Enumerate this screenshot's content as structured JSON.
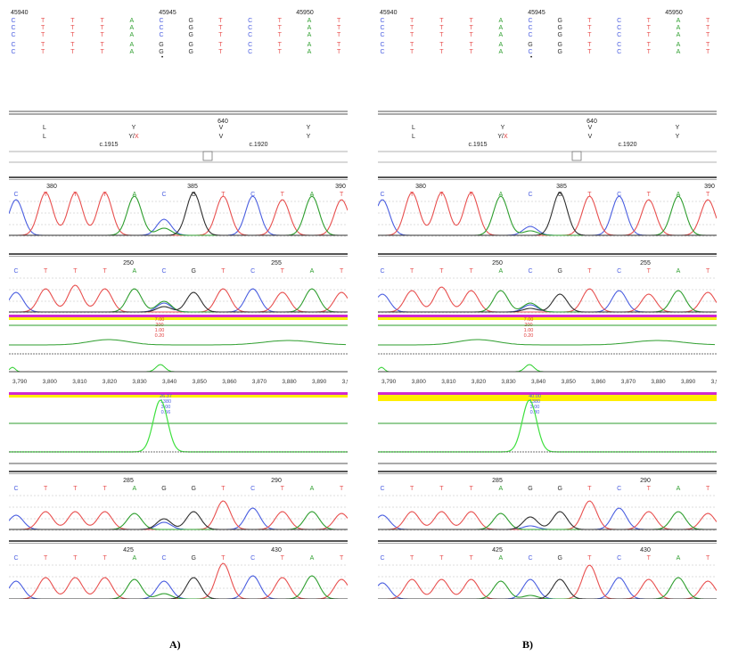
{
  "colors": {
    "A": "#2e9e2e",
    "C": "#4a5ee0",
    "G": "#303030",
    "T": "#e8504f",
    "N": "#e8504f",
    "label_red": "#e03a3a",
    "label_blue": "#4a5ee0",
    "highlight_yellow": "#ffee00",
    "highlight_magenta": "#d02ad0"
  },
  "panels": [
    {
      "id": "a",
      "caption": "A)",
      "ref_seq": {
        "pos_labels": [
          "45940",
          "45945",
          "45950"
        ],
        "rows": [
          [
            "C",
            "T",
            "T",
            "T",
            "A",
            "C",
            "G",
            "T",
            "C",
            "T",
            "A",
            "T"
          ],
          [
            "C",
            "T",
            "T",
            "T",
            "A",
            "C",
            "G",
            "T",
            "C",
            "T",
            "A",
            "T"
          ],
          [
            "C",
            "T",
            "T",
            "T",
            "A",
            "C",
            "G",
            "T",
            "C",
            "T",
            "A",
            "T"
          ],
          [
            "C",
            "T",
            "T",
            "T",
            "A",
            "G",
            "G",
            "T",
            "C",
            "T",
            "A",
            "T"
          ],
          [
            "C",
            "T",
            "T",
            "T",
            "A",
            "G",
            "G",
            "T",
            "C",
            "T",
            "A",
            "T"
          ]
        ]
      },
      "protein": {
        "codon_num": "640",
        "row1": [
          "L",
          "Y",
          "V",
          "Y"
        ],
        "row2_pre": [
          "L"
        ],
        "row2_mid": "Y/",
        "row2_mid_red": "X",
        "row2_post": [
          "V",
          "Y"
        ],
        "cdna": [
          "c.1915",
          "c.1920"
        ]
      },
      "traces": [
        {
          "pos_labels": [
            "380",
            "385",
            "390"
          ],
          "bases": [
            "C",
            "T",
            "T",
            "T",
            "A",
            "C",
            "G",
            "T",
            "C",
            "T",
            "A",
            "T"
          ]
        },
        {
          "pos_labels": [
            "250",
            "255"
          ],
          "bases": [
            "C",
            "T",
            "T",
            "T",
            "A",
            "C",
            "G",
            "T",
            "C",
            "T",
            "A",
            "T"
          ]
        },
        {
          "pos_labels": [
            "285",
            "290"
          ],
          "bases": [
            "C",
            "T",
            "T",
            "T",
            "A",
            "G",
            "G",
            "T",
            "C",
            "T",
            "A",
            "T"
          ]
        },
        {
          "pos_labels": [
            "425",
            "430"
          ],
          "bases": [
            "C",
            "T",
            "T",
            "T",
            "A",
            "C",
            "G",
            "T",
            "C",
            "T",
            "A",
            "T"
          ]
        }
      ],
      "analysis_top_vals": [
        "7.00",
        "200",
        "1.00",
        "0.20"
      ],
      "ticks": [
        "3,790",
        "3,800",
        "3,810",
        "3,820",
        "3,830",
        "3,840",
        "3,850",
        "3,860",
        "3,870",
        "3,880",
        "3,890",
        "3,9"
      ],
      "analysis_bot_vals": [
        "26.37",
        "1380",
        "3.00",
        "0.56"
      ]
    },
    {
      "id": "b",
      "caption": "B)",
      "ref_seq": {
        "pos_labels": [
          "45940",
          "45945",
          "45950"
        ],
        "rows": [
          [
            "C",
            "T",
            "T",
            "T",
            "A",
            "C",
            "G",
            "T",
            "C",
            "T",
            "A",
            "T"
          ],
          [
            "C",
            "T",
            "T",
            "T",
            "A",
            "C",
            "G",
            "T",
            "C",
            "T",
            "A",
            "T"
          ],
          [
            "C",
            "T",
            "T",
            "T",
            "A",
            "C",
            "G",
            "T",
            "C",
            "T",
            "A",
            "T"
          ],
          [
            "C",
            "T",
            "T",
            "T",
            "A",
            "G",
            "G",
            "T",
            "C",
            "T",
            "A",
            "T"
          ],
          [
            "C",
            "T",
            "T",
            "T",
            "A",
            "C",
            "G",
            "T",
            "C",
            "T",
            "A",
            "T"
          ]
        ]
      },
      "protein": {
        "codon_num": "640",
        "row1": [
          "L",
          "Y",
          "V",
          "Y"
        ],
        "row2_pre": [
          "L"
        ],
        "row2_mid": "Y/",
        "row2_mid_red": "X",
        "row2_post": [
          "V",
          "Y"
        ],
        "cdna": [
          "c.1915",
          "c.1920"
        ]
      },
      "traces": [
        {
          "pos_labels": [
            "380",
            "385",
            "390"
          ],
          "bases": [
            "C",
            "T",
            "T",
            "T",
            "A",
            "C",
            "G",
            "T",
            "C",
            "T",
            "A",
            "T"
          ]
        },
        {
          "pos_labels": [
            "250",
            "255"
          ],
          "bases": [
            "C",
            "T",
            "T",
            "T",
            "A",
            "C",
            "G",
            "T",
            "C",
            "T",
            "A",
            "T"
          ]
        },
        {
          "pos_labels": [
            "285",
            "290"
          ],
          "bases": [
            "C",
            "T",
            "T",
            "T",
            "A",
            "G",
            "G",
            "T",
            "C",
            "T",
            "A",
            "T"
          ]
        },
        {
          "pos_labels": [
            "425",
            "430"
          ],
          "bases": [
            "C",
            "T",
            "T",
            "T",
            "A",
            "C",
            "G",
            "T",
            "C",
            "T",
            "A",
            "T"
          ]
        }
      ],
      "analysis_top_vals": [
        "7.00",
        "200",
        "1.00",
        "0.20"
      ],
      "ticks": [
        "3,790",
        "3,800",
        "3,810",
        "3,820",
        "3,830",
        "3,840",
        "3,850",
        "3,860",
        "3,870",
        "3,880",
        "3,890",
        "3,9"
      ],
      "analysis_bot_vals": [
        "40.00",
        "1380",
        "3.00",
        "0.80"
      ]
    }
  ]
}
